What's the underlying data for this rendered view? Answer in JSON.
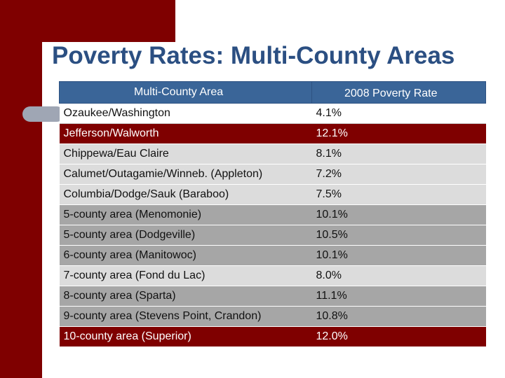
{
  "title": "Poverty Rates: Multi-County Areas",
  "colors": {
    "brand_red": "#7f0000",
    "title_blue": "#2b4f82",
    "header_blue": "#3a6598"
  },
  "table": {
    "headers": [
      "Multi-County Area",
      "2008 Poverty Rate"
    ],
    "rows": [
      {
        "area": "Ozaukee/Washington",
        "rate": "4.1%"
      },
      {
        "area": "Jefferson/Walworth",
        "rate": "12.1%"
      },
      {
        "area": "Chippewa/Eau Claire",
        "rate": "8.1%"
      },
      {
        "area": "Calumet/Outagamie/Winneb. (Appleton)",
        "rate": "7.2%"
      },
      {
        "area": "Columbia/Dodge/Sauk (Baraboo)",
        "rate": "7.5%"
      },
      {
        "area": "5-county area (Menomonie)",
        "rate": "10.1%"
      },
      {
        "area": "5-county area (Dodgeville)",
        "rate": "10.5%"
      },
      {
        "area": "6-county area (Manitowoc)",
        "rate": "10.1%"
      },
      {
        "area": "7-county area (Fond du Lac)",
        "rate": "8.0%"
      },
      {
        "area": "8-county area (Sparta)",
        "rate": "11.1%"
      },
      {
        "area": "9-county area (Stevens Point, Crandon)",
        "rate": "10.8%"
      },
      {
        "area": "10-county area (Superior)",
        "rate": "12.0%"
      }
    ]
  }
}
